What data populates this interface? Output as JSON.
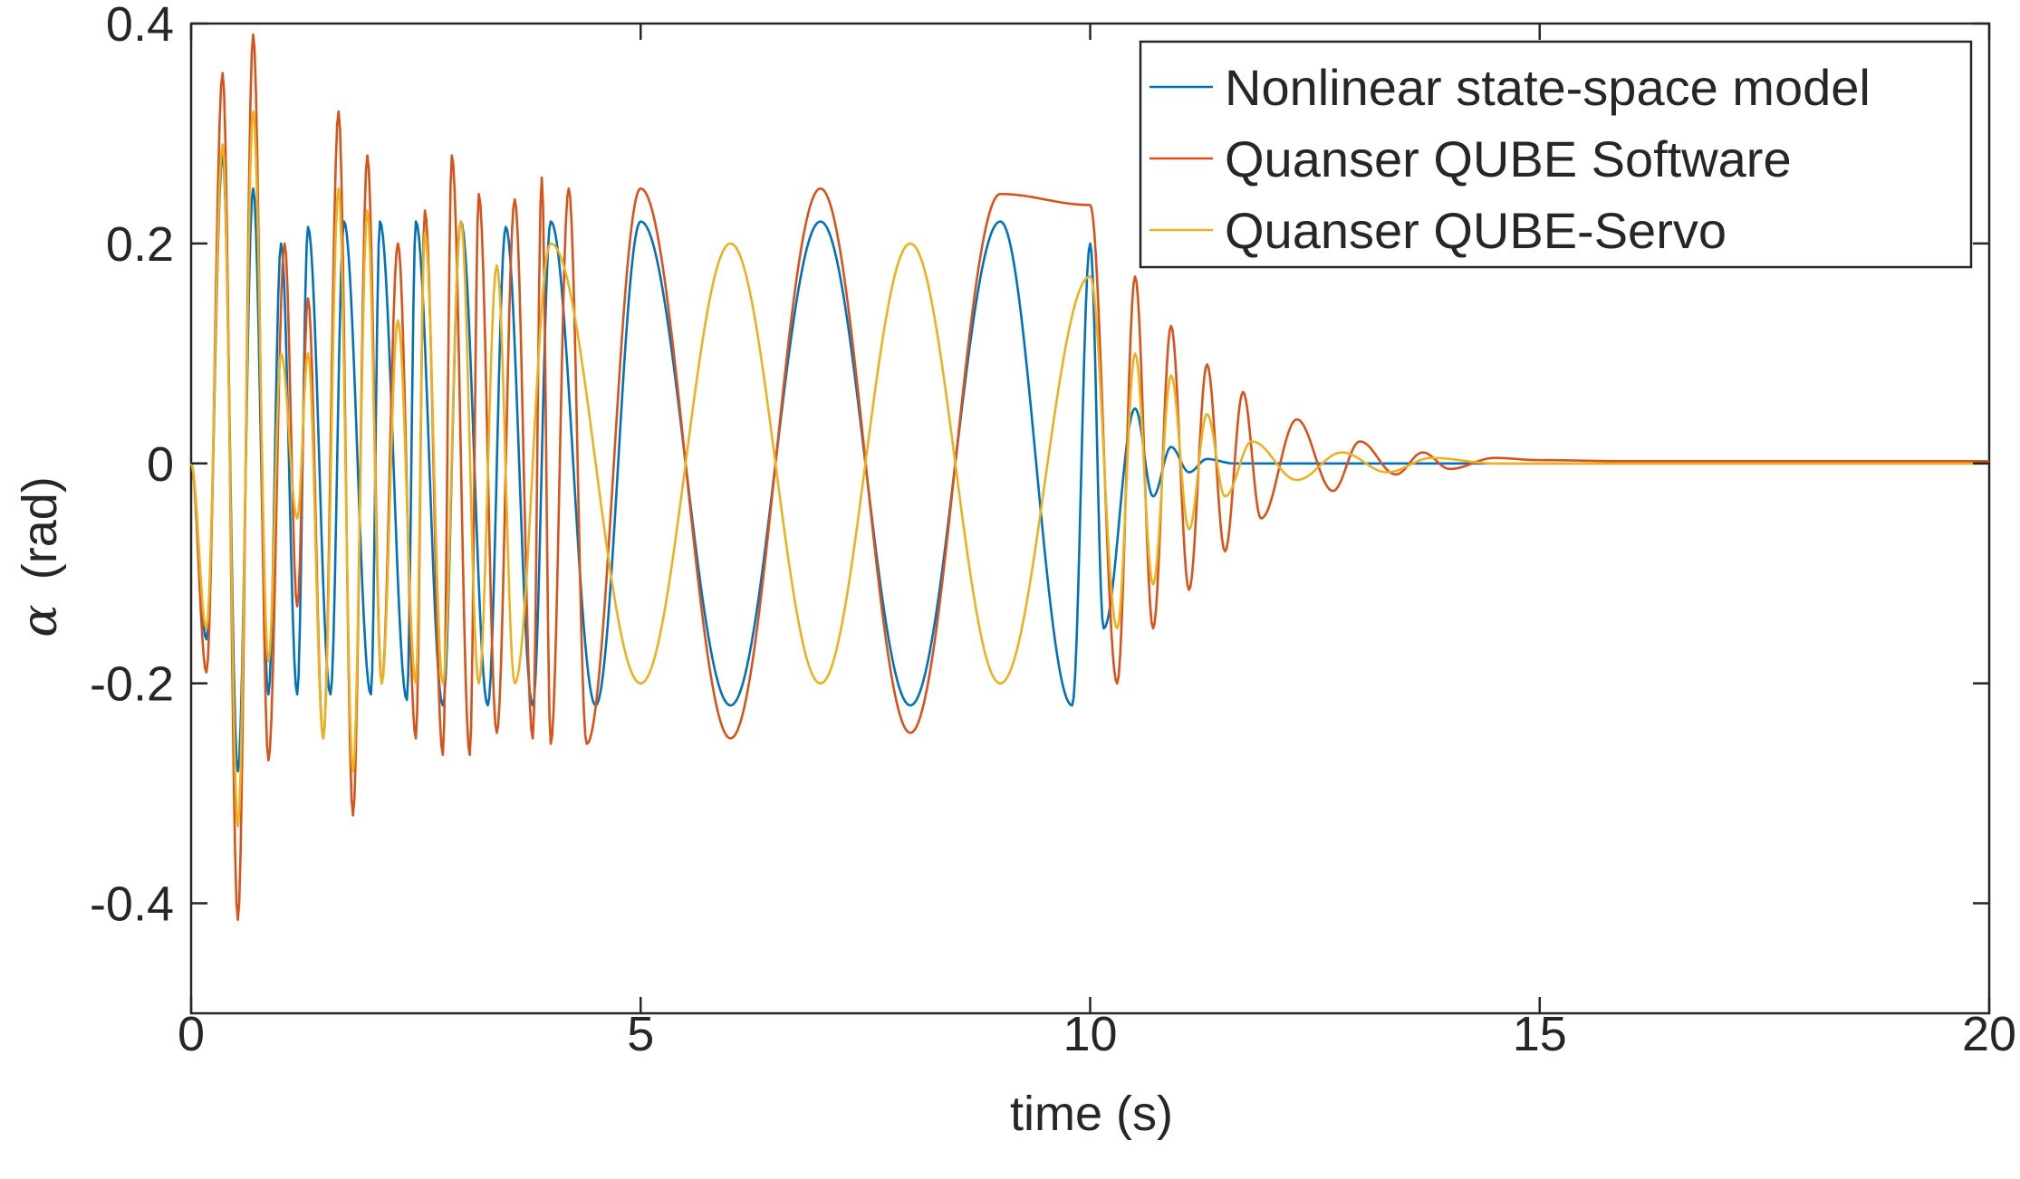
{
  "chart_data": {
    "type": "line",
    "title": "",
    "xlabel": "time (s)",
    "ylabel_symbol": "α",
    "ylabel": "(rad)",
    "xlim": [
      0,
      20
    ],
    "ylim": [
      -0.5,
      0.4
    ],
    "xticks": [
      0,
      5,
      10,
      15,
      20
    ],
    "xtick_labels": [
      "0",
      "5",
      "10",
      "15",
      "20"
    ],
    "yticks": [
      -0.4,
      -0.2,
      0,
      0.2,
      0.4
    ],
    "ytick_labels": [
      "-0.4",
      "-0.2",
      "0",
      "0.2",
      "0.4"
    ],
    "grid": false,
    "legend_position": "top-right",
    "series": [
      {
        "name": "Nonlinear state-space model",
        "color": "#0072BD",
        "points": [
          [
            0,
            0
          ],
          [
            0.17,
            -0.16
          ],
          [
            0.35,
            0.28
          ],
          [
            0.52,
            -0.28
          ],
          [
            0.69,
            0.25
          ],
          [
            0.86,
            -0.21
          ],
          [
            1.0,
            0.2
          ],
          [
            1.18,
            -0.21
          ],
          [
            1.3,
            0.215
          ],
          [
            1.55,
            -0.21
          ],
          [
            1.7,
            0.22
          ],
          [
            2.0,
            -0.21
          ],
          [
            2.1,
            0.22
          ],
          [
            2.4,
            -0.215
          ],
          [
            2.5,
            0.22
          ],
          [
            2.8,
            -0.22
          ],
          [
            3.0,
            0.22
          ],
          [
            3.3,
            -0.22
          ],
          [
            3.5,
            0.215
          ],
          [
            3.8,
            -0.22
          ],
          [
            4.0,
            0.22
          ],
          [
            4.5,
            -0.22
          ],
          [
            5.0,
            0.22
          ],
          [
            6.0,
            -0.22
          ],
          [
            7.0,
            0.22
          ],
          [
            8.0,
            -0.22
          ],
          [
            9.0,
            0.22
          ],
          [
            9.8,
            -0.22
          ],
          [
            10.0,
            0.2
          ],
          [
            10.15,
            -0.15
          ],
          [
            10.5,
            0.05
          ],
          [
            10.7,
            -0.03
          ],
          [
            10.9,
            0.015
          ],
          [
            11.1,
            -0.008
          ],
          [
            11.3,
            0.004
          ],
          [
            11.6,
            0
          ],
          [
            20,
            0
          ]
        ]
      },
      {
        "name": "Quanser QUBE Software",
        "color": "#D95319",
        "points": [
          [
            0,
            0
          ],
          [
            0.17,
            -0.19
          ],
          [
            0.35,
            0.355
          ],
          [
            0.52,
            -0.415
          ],
          [
            0.69,
            0.39
          ],
          [
            0.86,
            -0.27
          ],
          [
            1.04,
            0.2
          ],
          [
            1.18,
            -0.13
          ],
          [
            1.3,
            0.15
          ],
          [
            1.47,
            -0.25
          ],
          [
            1.64,
            0.32
          ],
          [
            1.8,
            -0.32
          ],
          [
            1.96,
            0.28
          ],
          [
            2.12,
            -0.2
          ],
          [
            2.3,
            0.2
          ],
          [
            2.5,
            -0.25
          ],
          [
            2.6,
            0.23
          ],
          [
            2.8,
            -0.265
          ],
          [
            2.9,
            0.28
          ],
          [
            3.1,
            -0.265
          ],
          [
            3.2,
            0.245
          ],
          [
            3.4,
            -0.245
          ],
          [
            3.6,
            0.24
          ],
          [
            3.8,
            -0.25
          ],
          [
            3.9,
            0.26
          ],
          [
            4.0,
            -0.255
          ],
          [
            4.2,
            0.25
          ],
          [
            4.4,
            -0.255
          ],
          [
            5.0,
            0.25
          ],
          [
            6.0,
            -0.25
          ],
          [
            7.0,
            0.25
          ],
          [
            8.0,
            -0.245
          ],
          [
            9.0,
            0.245
          ],
          [
            10.0,
            0.235
          ],
          [
            10.3,
            -0.2
          ],
          [
            10.5,
            0.17
          ],
          [
            10.7,
            -0.15
          ],
          [
            10.9,
            0.125
          ],
          [
            11.1,
            -0.115
          ],
          [
            11.3,
            0.09
          ],
          [
            11.5,
            -0.08
          ],
          [
            11.7,
            0.065
          ],
          [
            11.9,
            -0.05
          ],
          [
            12.3,
            0.04
          ],
          [
            12.7,
            -0.025
          ],
          [
            13.0,
            0.02
          ],
          [
            13.4,
            -0.01
          ],
          [
            13.7,
            0.01
          ],
          [
            14.0,
            -0.005
          ],
          [
            14.5,
            0.005
          ],
          [
            15.0,
            0.003
          ],
          [
            16.0,
            0.002
          ],
          [
            20,
            0.002
          ]
        ]
      },
      {
        "name": "Quanser QUBE-Servo",
        "color": "#EDB120",
        "points": [
          [
            0,
            0
          ],
          [
            0.17,
            -0.15
          ],
          [
            0.35,
            0.29
          ],
          [
            0.52,
            -0.33
          ],
          [
            0.69,
            0.32
          ],
          [
            0.86,
            -0.18
          ],
          [
            1.0,
            0.1
          ],
          [
            1.18,
            -0.05
          ],
          [
            1.3,
            0.1
          ],
          [
            1.47,
            -0.25
          ],
          [
            1.64,
            0.25
          ],
          [
            1.8,
            -0.28
          ],
          [
            1.96,
            0.23
          ],
          [
            2.12,
            -0.2
          ],
          [
            2.3,
            0.13
          ],
          [
            2.5,
            -0.2
          ],
          [
            2.6,
            0.21
          ],
          [
            2.8,
            -0.2
          ],
          [
            3.0,
            0.22
          ],
          [
            3.2,
            -0.2
          ],
          [
            3.4,
            0.18
          ],
          [
            3.6,
            -0.2
          ],
          [
            4.0,
            0.2
          ],
          [
            5.0,
            -0.2
          ],
          [
            6.0,
            0.2
          ],
          [
            7.0,
            -0.2
          ],
          [
            8.0,
            0.2
          ],
          [
            9.0,
            -0.2
          ],
          [
            10.0,
            0.17
          ],
          [
            10.3,
            -0.15
          ],
          [
            10.5,
            0.1
          ],
          [
            10.7,
            -0.11
          ],
          [
            10.9,
            0.08
          ],
          [
            11.1,
            -0.06
          ],
          [
            11.3,
            0.045
          ],
          [
            11.5,
            -0.03
          ],
          [
            11.8,
            0.02
          ],
          [
            12.3,
            -0.015
          ],
          [
            12.8,
            0.01
          ],
          [
            13.3,
            -0.008
          ],
          [
            13.8,
            0.005
          ],
          [
            14.5,
            0
          ],
          [
            20,
            0
          ]
        ]
      }
    ]
  }
}
